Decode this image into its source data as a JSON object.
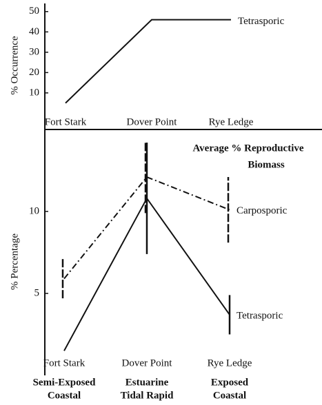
{
  "chart_data": [
    {
      "type": "line",
      "y_label": "% Occurrence",
      "categories": [
        "Fort Stark",
        "Dover Point",
        "Rye Ledge"
      ],
      "ylim": [
        -8,
        54
      ],
      "yticks": [
        10,
        20,
        30,
        40,
        50
      ],
      "series": [
        {
          "name": "Tetrasporic",
          "color": "#111111",
          "dash": "solid",
          "values": [
            5,
            46,
            46
          ]
        }
      ]
    },
    {
      "type": "line",
      "y_label": "% Percentage",
      "annotation": [
        "Average % Reproductive",
        "Biomass"
      ],
      "categories": [
        "Fort Stark",
        "Dover Point",
        "Rye Ledge"
      ],
      "habitats": [
        [
          "Semi-Exposed",
          "Coastal"
        ],
        [
          "Estuarine",
          "Tidal Rapid"
        ],
        [
          "Exposed",
          "Coastal"
        ]
      ],
      "ylim": [
        0,
        15
      ],
      "yticks": [
        5,
        10
      ],
      "series": [
        {
          "name": "Carposporic",
          "color": "#111111",
          "dash": "dash-dot",
          "values": [
            5.9,
            12.1,
            10.1
          ],
          "errors": [
            1.2,
            2.2,
            2
          ]
        },
        {
          "name": "Tetrasporic",
          "color": "#111111",
          "dash": "solid",
          "values": [
            1.5,
            10.8,
            3.7
          ],
          "errors": [
            null,
            3.4,
            1.2
          ]
        }
      ]
    }
  ]
}
